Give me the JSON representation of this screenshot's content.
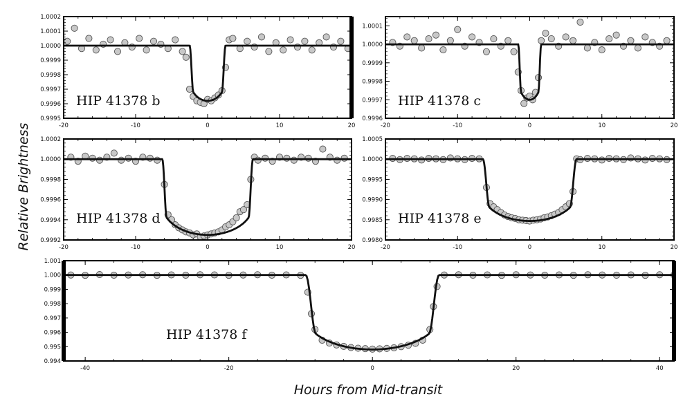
{
  "figure": {
    "ylabel": "Relative Brightness",
    "xlabel": "Hours from Mid-transit"
  },
  "chart_data": [
    {
      "type": "scatter",
      "title": "HIP 41378 b",
      "xlim": [
        -20,
        20
      ],
      "ylim": [
        0.9995,
        1.0002
      ],
      "xticks": [
        -20,
        -10,
        0,
        10,
        20
      ],
      "yticks": [
        "0.9995",
        "0.9996",
        "0.9997",
        "0.9998",
        "0.9999",
        "1.0000",
        "1.0001",
        "1.0002"
      ],
      "model": {
        "depth": 0.00038,
        "t14_half": 2.5,
        "ingress": 0.5,
        "limb_darkening": 0.4
      },
      "series": [
        {
          "x": [
            -19.5,
            -18.5,
            -17.5,
            -16.5,
            -15.5,
            -14.5,
            -13.5,
            -12.5,
            -11.5,
            -10.5,
            -9.5,
            -8.5,
            -7.5,
            -6.5,
            -5.5,
            -4.5,
            -3.5,
            -3,
            -2.5,
            -2,
            -1.5,
            -1,
            -0.5,
            0,
            0.5,
            1,
            1.5,
            2,
            2.5,
            3,
            3.5,
            4.5,
            5.5,
            6.5,
            7.5,
            8.5,
            9.5,
            10.5,
            11.5,
            12.5,
            13.5,
            14.5,
            15.5,
            16.5,
            17.5,
            18.5,
            19.5
          ],
          "y": [
            1.00003,
            1.00012,
            0.99998,
            1.00005,
            0.99997,
            1.00001,
            1.00004,
            0.99996,
            1.00002,
            0.99999,
            1.00005,
            0.99997,
            1.00003,
            1.00001,
            0.99998,
            1.00004,
            0.99996,
            0.99992,
            0.9997,
            0.99965,
            0.99962,
            0.99961,
            0.9996,
            0.99963,
            0.99962,
            0.99964,
            0.99966,
            0.99969,
            0.99985,
            1.00004,
            1.00005,
            0.99998,
            1.00003,
            0.99999,
            1.00006,
            0.99996,
            1.00002,
            0.99997,
            1.00004,
            0.99999,
            1.00003,
            0.99997,
            1.00002,
            1.00006,
            0.99999,
            1.00003,
            0.99998
          ]
        }
      ]
    },
    {
      "type": "scatter",
      "title": "HIP 41378 c",
      "xlim": [
        -20,
        20
      ],
      "ylim": [
        0.9996,
        1.00015
      ],
      "xticks": [
        -20,
        -10,
        0,
        10,
        20
      ],
      "yticks": [
        "0.9996",
        "0.9997",
        "0.9998",
        "0.9999",
        "1.0000",
        "1.0001"
      ],
      "model": {
        "depth": 0.0003,
        "t14_half": 1.6,
        "ingress": 0.4,
        "limb_darkening": 0.4
      },
      "series": [
        {
          "x": [
            -19,
            -18,
            -17,
            -16,
            -15,
            -14,
            -13,
            -12,
            -11,
            -10,
            -9,
            -8,
            -7,
            -6,
            -5,
            -4,
            -3,
            -2.2,
            -1.6,
            -1.2,
            -0.8,
            -0.4,
            0,
            0.4,
            0.8,
            1.2,
            1.6,
            2.2,
            3,
            4,
            5,
            6,
            7,
            8,
            9,
            10,
            11,
            12,
            13,
            14,
            15,
            16,
            17,
            18,
            19
          ],
          "y": [
            1.00001,
            0.99999,
            1.00004,
            1.00002,
            0.99998,
            1.00003,
            1.00005,
            0.99997,
            1.00002,
            1.00008,
            0.99999,
            1.00004,
            1.00001,
            0.99996,
            1.00003,
            0.99999,
            1.00002,
            0.99996,
            0.99985,
            0.99975,
            0.99968,
            0.99971,
            0.99972,
            0.9997,
            0.99974,
            0.99982,
            1.00002,
            1.00006,
            1.00003,
            0.99999,
            1.00004,
            1.00002,
            1.00012,
            0.99998,
            1.00001,
            0.99997,
            1.00003,
            1.00005,
            0.99999,
            1.00002,
            0.99998,
            1.00004,
            1.00001,
            0.99999,
            1.00002
          ]
        }
      ]
    },
    {
      "type": "scatter",
      "title": "HIP 41378 d",
      "xlim": [
        -20,
        20
      ],
      "ylim": [
        0.9992,
        1.0002
      ],
      "xticks": [
        -20,
        -10,
        0,
        10,
        20
      ],
      "yticks": [
        "0.9992",
        "0.9994",
        "0.9996",
        "0.9998",
        "1.0000",
        "1.0002"
      ],
      "model": {
        "depth": 0.00075,
        "t14_half": 6.3,
        "ingress": 0.6,
        "limb_darkening": 0.4
      },
      "series": [
        {
          "x": [
            -19,
            -18,
            -17,
            -16,
            -15,
            -14,
            -13,
            -12,
            -11,
            -10,
            -9,
            -8,
            -7,
            -6,
            -5.5,
            -5,
            -4.5,
            -4,
            -3.5,
            -3,
            -2.5,
            -2,
            -1.5,
            -1,
            -0.5,
            0,
            0.5,
            1,
            1.5,
            2,
            2.5,
            3,
            3.5,
            4,
            4.5,
            5,
            5.5,
            6,
            6.5,
            7,
            8,
            9,
            10,
            11,
            12,
            13,
            14,
            15,
            16,
            17,
            18,
            19
          ],
          "y": [
            1.00002,
            0.99998,
            1.00003,
            1.00001,
            0.99999,
            1.00002,
            1.00006,
            0.99999,
            1.00001,
            0.99998,
            1.00002,
            1.00001,
            0.99999,
            0.99975,
            0.99945,
            0.9994,
            0.99935,
            0.99932,
            0.9993,
            0.99928,
            0.99927,
            0.99925,
            0.99926,
            0.99923,
            0.99924,
            0.99925,
            0.99926,
            0.99927,
            0.99928,
            0.9993,
            0.99933,
            0.99935,
            0.99938,
            0.99942,
            0.99948,
            0.9995,
            0.99955,
            0.9998,
            1.00002,
            0.99999,
            1.00001,
            0.99998,
            1.00002,
            1.00001,
            0.99999,
            1.00002,
            1.00001,
            0.99998,
            1.0001,
            1.00002,
            0.99999,
            1.00001
          ]
        }
      ]
    },
    {
      "type": "scatter",
      "title": "HIP 41378 e",
      "xlim": [
        -20,
        20
      ],
      "ylim": [
        0.998,
        1.0005
      ],
      "xticks": [
        -20,
        -10,
        0,
        10,
        20
      ],
      "yticks": [
        "0.9980",
        "0.9985",
        "0.9990",
        "0.9995",
        "1.0000",
        "1.0005"
      ],
      "model": {
        "depth": 0.00153,
        "t14_half": 6.5,
        "ingress": 0.9,
        "limb_darkening": 0.45
      },
      "series": [
        {
          "x": [
            -19,
            -18,
            -17,
            -16,
            -15,
            -14,
            -13,
            -12,
            -11,
            -10,
            -9,
            -8,
            -7,
            -6,
            -5.5,
            -5,
            -4.5,
            -4,
            -3.5,
            -3,
            -2.5,
            -2,
            -1.5,
            -1,
            -0.5,
            0,
            0.5,
            1,
            1.5,
            2,
            2.5,
            3,
            3.5,
            4,
            4.5,
            5,
            5.5,
            6,
            6.5,
            7,
            8,
            9,
            10,
            11,
            12,
            13,
            14,
            15,
            16,
            17,
            18,
            19
          ],
          "y": [
            1.00002,
            0.99999,
            1.00002,
            1.00001,
            0.99998,
            1.00002,
            1.00001,
            0.99999,
            1.00003,
            1.00001,
            0.99999,
            1.00002,
            1.00001,
            0.9993,
            0.9989,
            0.99882,
            0.99875,
            0.99868,
            0.99862,
            0.99858,
            0.99855,
            0.99853,
            0.9985,
            0.99849,
            0.99848,
            0.99847,
            0.99849,
            0.9985,
            0.99852,
            0.99855,
            0.99857,
            0.9986,
            0.99864,
            0.99868,
            0.99875,
            0.99882,
            0.9989,
            0.9992,
            1.00001,
            0.99999,
            1.00002,
            1.00001,
            0.99998,
            1.00002,
            1.00001,
            0.99999,
            1.00003,
            1.00001,
            0.99998,
            1.00002,
            1.00001,
            0.99999
          ]
        }
      ]
    },
    {
      "type": "scatter",
      "title": "HIP 41378 f",
      "xlim": [
        -43,
        42
      ],
      "ylim": [
        0.994,
        1.001
      ],
      "xticks": [
        -40,
        -20,
        0,
        20,
        40
      ],
      "yticks": [
        "0.994",
        "0.995",
        "0.996",
        "0.997",
        "0.998",
        "0.999",
        "1.000",
        "1.001"
      ],
      "model": {
        "depth": 0.0052,
        "t14_half": 9.3,
        "ingress": 1.4,
        "limb_darkening": 0.45
      },
      "series": [
        {
          "x": [
            -42,
            -40,
            -38,
            -36,
            -34,
            -32,
            -30,
            -28,
            -26,
            -24,
            -22,
            -20,
            -18,
            -16,
            -14,
            -12,
            -10,
            -9,
            -8.5,
            -8,
            -7,
            -6,
            -5,
            -4,
            -3,
            -2,
            -1,
            0,
            1,
            2,
            3,
            4,
            5,
            6,
            7,
            8,
            8.5,
            9,
            10,
            12,
            14,
            16,
            18,
            20,
            22,
            24,
            26,
            28,
            30,
            32,
            34,
            36,
            38,
            40,
            42
          ],
          "y": [
            1.0,
            0.99998,
            1.00003,
            0.99999,
            1.0,
            1.00002,
            0.99998,
            1.00001,
            0.99999,
            1.00002,
            1.00001,
            0.99998,
            1.0,
            1.00002,
            0.99999,
            1.00001,
            0.99998,
            0.9988,
            0.9973,
            0.9962,
            0.99545,
            0.99525,
            0.99512,
            0.99502,
            0.99494,
            0.99489,
            0.99486,
            0.99483,
            0.99485,
            0.99488,
            0.99492,
            0.995,
            0.9951,
            0.99523,
            0.99545,
            0.9962,
            0.9978,
            0.9992,
            1.0,
            1.00002,
            0.99999,
            1.00001,
            0.99998,
            1.00002,
            1.0,
            0.99999,
            1.00001,
            0.99998,
            1.00002,
            1.0,
            0.99999,
            1.00001,
            0.99998,
            1.00002,
            1.0
          ]
        }
      ]
    }
  ]
}
